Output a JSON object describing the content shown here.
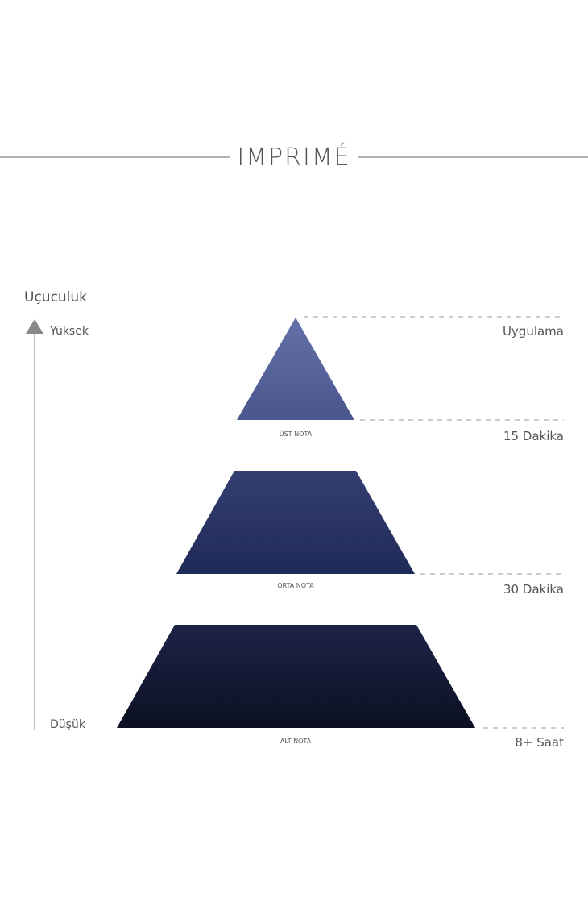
{
  "title": "IMPRIMÉ",
  "axis": {
    "label": "Uçuculuk",
    "high": "Yüksek",
    "low": "Düşük"
  },
  "tiers": [
    {
      "name": "ÜST NOTA",
      "color_top": "#6470a8",
      "color_bottom": "#4a568e"
    },
    {
      "name": "ORTA NOTA",
      "color_top": "#343f72",
      "color_bottom": "#1f2a58"
    },
    {
      "name": "ALT NOTA",
      "color_top": "#1c2448",
      "color_bottom": "#0c1022"
    }
  ],
  "times": [
    "Uygulama",
    "15 Dakika",
    "30 Dakika",
    "8+ Saat"
  ]
}
